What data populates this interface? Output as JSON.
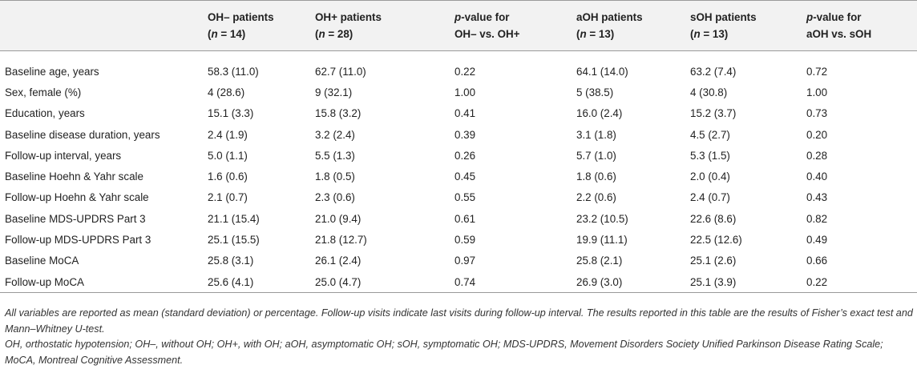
{
  "table": {
    "columns": [
      {
        "line1": "",
        "line2": "",
        "n_prefix": "",
        "n_value": ""
      },
      {
        "line1": "OH– patients",
        "n_prefix": "(",
        "n_var": "n",
        "n_eq": " = 14)"
      },
      {
        "line1": "OH+ patients",
        "n_prefix": "(",
        "n_var": "n",
        "n_eq": " = 28)"
      },
      {
        "line1_var": "p",
        "line1_rest": "-value for",
        "line2": "OH– vs. OH+"
      },
      {
        "line1": "aOH patients",
        "n_prefix": "(",
        "n_var": "n",
        "n_eq": " = 13)"
      },
      {
        "line1": "sOH patients",
        "n_prefix": "(",
        "n_var": "n",
        "n_eq": " = 13)"
      },
      {
        "line1_var": "p",
        "line1_rest": "-value for",
        "line2": "aOH vs. sOH"
      }
    ],
    "rows": [
      [
        "Baseline age, years",
        "58.3 (11.0)",
        "62.7 (11.0)",
        "0.22",
        "64.1 (14.0)",
        "63.2 (7.4)",
        "0.72"
      ],
      [
        "Sex, female (%)",
        "4 (28.6)",
        "9 (32.1)",
        "1.00",
        "5 (38.5)",
        "4 (30.8)",
        "1.00"
      ],
      [
        "Education, years",
        "15.1 (3.3)",
        "15.8 (3.2)",
        "0.41",
        "16.0 (2.4)",
        "15.2 (3.7)",
        "0.73"
      ],
      [
        "Baseline disease duration, years",
        "2.4 (1.9)",
        "3.2 (2.4)",
        "0.39",
        "3.1 (1.8)",
        "4.5 (2.7)",
        "0.20"
      ],
      [
        "Follow-up interval, years",
        "5.0 (1.1)",
        "5.5 (1.3)",
        "0.26",
        "5.7 (1.0)",
        "5.3 (1.5)",
        "0.28"
      ],
      [
        "Baseline Hoehn & Yahr scale",
        "1.6 (0.6)",
        "1.8 (0.5)",
        "0.45",
        "1.8 (0.6)",
        "2.0 (0.4)",
        "0.40"
      ],
      [
        "Follow-up Hoehn & Yahr scale",
        "2.1 (0.7)",
        "2.3 (0.6)",
        "0.55",
        "2.2 (0.6)",
        "2.4 (0.7)",
        "0.43"
      ],
      [
        "Baseline MDS-UPDRS Part 3",
        "21.1 (15.4)",
        "21.0 (9.4)",
        "0.61",
        "23.2 (10.5)",
        "22.6 (8.6)",
        "0.82"
      ],
      [
        "Follow-up MDS-UPDRS Part 3",
        "25.1 (15.5)",
        "21.8 (12.7)",
        "0.59",
        "19.9 (11.1)",
        "22.5 (12.6)",
        "0.49"
      ],
      [
        "Baseline MoCA",
        "25.8 (3.1)",
        "26.1 (2.4)",
        "0.97",
        "25.8 (2.1)",
        "25.1 (2.6)",
        "0.66"
      ],
      [
        "Follow-up MoCA",
        "25.6 (4.1)",
        "25.0 (4.7)",
        "0.74",
        "26.9 (3.0)",
        "25.1 (3.9)",
        "0.22"
      ]
    ]
  },
  "footnotes": {
    "note1": "All variables are reported as mean (standard deviation) or percentage. Follow-up visits indicate last visits during follow-up interval. The results reported in this table are the results of Fisher’s exact test and Mann–Whitney U-test.",
    "note2": "OH, orthostatic hypotension; OH–, without OH; OH+, with OH; aOH, asymptomatic OH; sOH, symptomatic OH; MDS-UPDRS, Movement Disorders Society Unified Parkinson Disease Rating Scale; MoCA, Montreal Cognitive Assessment."
  }
}
